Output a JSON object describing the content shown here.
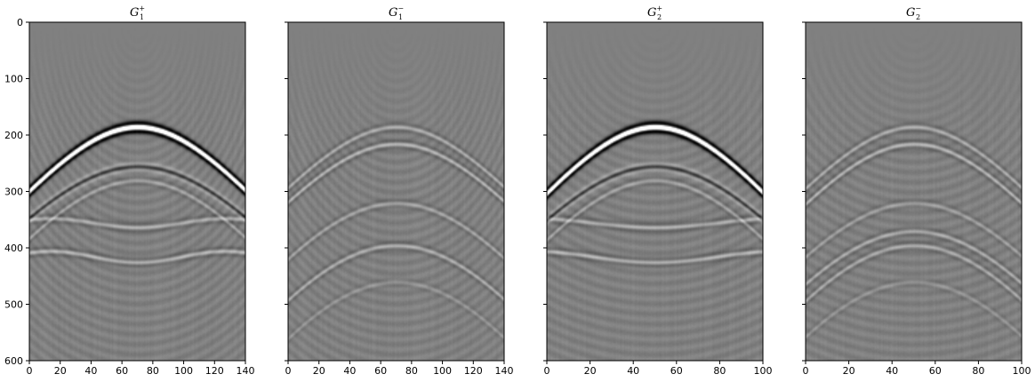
{
  "figure": {
    "background": "#ffffff",
    "image_background": "#808080",
    "colormap": "gray"
  },
  "chart_data": [
    {
      "type": "heatmap",
      "title": {
        "base": "G",
        "sub": "1",
        "sup": "+"
      },
      "xlim": [
        0,
        140
      ],
      "ylim": [
        600,
        0
      ],
      "xticks": [
        "0",
        "20",
        "40",
        "60",
        "80",
        "100",
        "120",
        "140"
      ],
      "yticks": [
        "0",
        "100",
        "200",
        "300",
        "400",
        "500",
        "600"
      ],
      "show_ytick_labels": true,
      "apex_x": 70,
      "events": [
        {
          "t0": 185,
          "v": 0.3,
          "amp": 1.0,
          "wavelet": "strong"
        },
        {
          "t0": 255,
          "v": 0.3,
          "amp": -0.45,
          "wavelet": "ricker"
        },
        {
          "t0": 280,
          "v": 0.27,
          "amp": 0.25,
          "wavelet": "ricker"
        },
        {
          "t0": 355,
          "v": 0.0,
          "amp": 0.3,
          "wavelet": "ricker",
          "curve": 8
        },
        {
          "t0": 415,
          "v": 0.0,
          "amp": 0.35,
          "wavelet": "ricker",
          "curve": 10
        }
      ]
    },
    {
      "type": "heatmap",
      "title": {
        "base": "G",
        "sub": "1",
        "sup": "−"
      },
      "xlim": [
        0,
        140
      ],
      "ylim": [
        600,
        0
      ],
      "xticks": [
        "0",
        "20",
        "40",
        "60",
        "80",
        "100",
        "120",
        "140"
      ],
      "yticks": [
        "0",
        "100",
        "200",
        "300",
        "400",
        "500",
        "600"
      ],
      "show_ytick_labels": false,
      "apex_x": 70,
      "events": [
        {
          "t0": 185,
          "v": 0.31,
          "amp": 0.3,
          "wavelet": "ricker"
        },
        {
          "t0": 215,
          "v": 0.3,
          "amp": 0.35,
          "wavelet": "ricker"
        },
        {
          "t0": 320,
          "v": 0.26,
          "amp": 0.25,
          "wavelet": "ricker"
        },
        {
          "t0": 395,
          "v": 0.24,
          "amp": 0.3,
          "wavelet": "ricker"
        },
        {
          "t0": 460,
          "v": 0.22,
          "amp": 0.15,
          "wavelet": "ricker"
        }
      ]
    },
    {
      "type": "heatmap",
      "title": {
        "base": "G",
        "sub": "2",
        "sup": "+"
      },
      "xlim": [
        0,
        100
      ],
      "ylim": [
        600,
        0
      ],
      "xticks": [
        "0",
        "20",
        "40",
        "60",
        "80",
        "100"
      ],
      "yticks": [
        "0",
        "100",
        "200",
        "300",
        "400",
        "500",
        "600"
      ],
      "show_ytick_labels": false,
      "apex_x": 50,
      "events": [
        {
          "t0": 185,
          "v": 0.21,
          "amp": 1.0,
          "wavelet": "strong"
        },
        {
          "t0": 255,
          "v": 0.21,
          "amp": -0.45,
          "wavelet": "ricker"
        },
        {
          "t0": 280,
          "v": 0.19,
          "amp": 0.25,
          "wavelet": "ricker"
        },
        {
          "t0": 355,
          "v": 0.0,
          "amp": 0.3,
          "wavelet": "ricker",
          "curve": 8
        },
        {
          "t0": 415,
          "v": 0.0,
          "amp": 0.35,
          "wavelet": "ricker",
          "curve": 10
        }
      ]
    },
    {
      "type": "heatmap",
      "title": {
        "base": "G",
        "sub": "2",
        "sup": "−"
      },
      "xlim": [
        0,
        100
      ],
      "ylim": [
        600,
        0
      ],
      "xticks": [
        "0",
        "20",
        "40",
        "60",
        "80",
        "100"
      ],
      "yticks": [
        "0",
        "100",
        "200",
        "300",
        "400",
        "500",
        "600"
      ],
      "show_ytick_labels": false,
      "apex_x": 50,
      "events": [
        {
          "t0": 185,
          "v": 0.22,
          "amp": 0.3,
          "wavelet": "ricker"
        },
        {
          "t0": 215,
          "v": 0.21,
          "amp": 0.35,
          "wavelet": "ricker"
        },
        {
          "t0": 320,
          "v": 0.19,
          "amp": 0.22,
          "wavelet": "ricker"
        },
        {
          "t0": 370,
          "v": 0.18,
          "amp": 0.3,
          "wavelet": "ricker"
        },
        {
          "t0": 395,
          "v": 0.17,
          "amp": 0.28,
          "wavelet": "ricker"
        },
        {
          "t0": 460,
          "v": 0.16,
          "amp": 0.15,
          "wavelet": "ricker"
        }
      ]
    }
  ]
}
